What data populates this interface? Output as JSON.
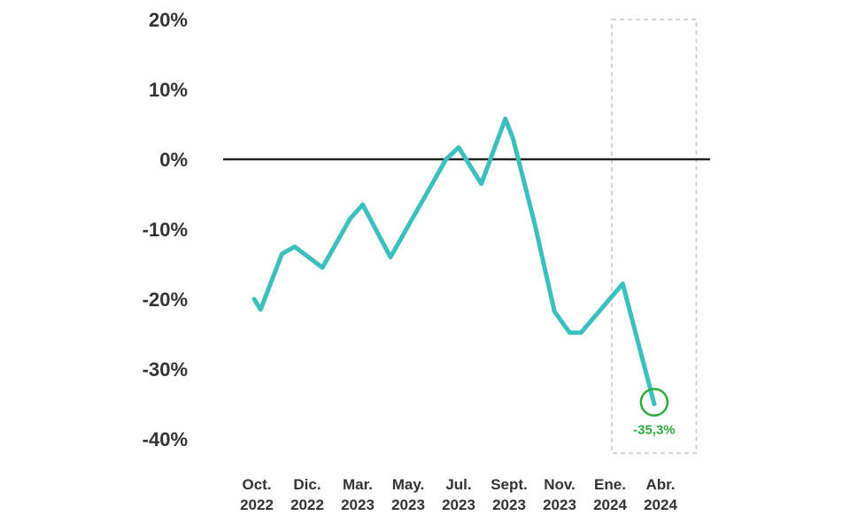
{
  "chart_data": {
    "type": "line",
    "title": "",
    "xlabel": "",
    "ylabel": "",
    "ylim": [
      -40,
      20
    ],
    "y_ticks": [
      {
        "value": 20,
        "label": "20%"
      },
      {
        "value": 10,
        "label": "10%"
      },
      {
        "value": 0,
        "label": "0%"
      },
      {
        "value": -10,
        "label": "-10%"
      },
      {
        "value": -20,
        "label": "-20%"
      },
      {
        "value": -30,
        "label": "-30%"
      },
      {
        "value": -40,
        "label": "-40%"
      }
    ],
    "x_ticks": [
      {
        "month": "Oct.",
        "year": "2022",
        "index": 0
      },
      {
        "month": "Dic.",
        "year": "2022",
        "index": 2
      },
      {
        "month": "Mar.",
        "year": "2023",
        "index": 4
      },
      {
        "month": "May.",
        "year": "2023",
        "index": 6
      },
      {
        "month": "Jul.",
        "year": "2023",
        "index": 8
      },
      {
        "month": "Sept.",
        "year": "2023",
        "index": 10
      },
      {
        "month": "Nov.",
        "year": "2023",
        "index": 12
      },
      {
        "month": "Ene.",
        "year": "2024",
        "index": 14
      },
      {
        "month": "Abr.",
        "year": "2024",
        "index": 16
      }
    ],
    "grid": false,
    "zero_line": true,
    "line_color": "#3bbfbf",
    "highlight_color": "#2eaa3e",
    "highlight_box": {
      "from_index": 14,
      "to_index": 17
    },
    "series": [
      {
        "values": [
          {
            "x": -0.1,
            "y": -20.0
          },
          {
            "x": 0.15,
            "y": -21.5
          },
          {
            "x": 1.0,
            "y": -13.5
          },
          {
            "x": 1.5,
            "y": -12.5
          },
          {
            "x": 2.6,
            "y": -15.5
          },
          {
            "x": 3.7,
            "y": -8.5
          },
          {
            "x": 4.2,
            "y": -6.5
          },
          {
            "x": 5.3,
            "y": -14.0
          },
          {
            "x": 6.4,
            "y": -7.0
          },
          {
            "x": 7.5,
            "y": 0.0
          },
          {
            "x": 8.0,
            "y": 1.7
          },
          {
            "x": 8.9,
            "y": -3.5
          },
          {
            "x": 9.85,
            "y": 5.8
          },
          {
            "x": 10.15,
            "y": 3.0
          },
          {
            "x": 11.0,
            "y": -9.0
          },
          {
            "x": 11.8,
            "y": -21.8
          },
          {
            "x": 12.4,
            "y": -24.8
          },
          {
            "x": 12.85,
            "y": -24.8
          },
          {
            "x": 14.5,
            "y": -17.8
          },
          {
            "x": 15.75,
            "y": -35.0
          }
        ]
      }
    ],
    "annotation": {
      "label": "-35,3%",
      "x": 15.75,
      "y": -35.0
    }
  }
}
